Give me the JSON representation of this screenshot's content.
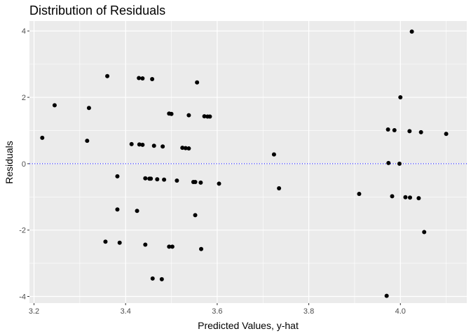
{
  "chart_data": {
    "type": "scatter",
    "title": "Distribution of Residuals",
    "xlabel": "Predicted Values, y-hat",
    "ylabel": "Residuals",
    "xlim": [
      3.19,
      4.145
    ],
    "ylim": [
      -4.2,
      4.3
    ],
    "xticks": [
      "3.2",
      "3.4",
      "3.6",
      "3.8",
      "4.0"
    ],
    "yticks": [
      "-4",
      "-2",
      "0",
      "2",
      "4"
    ],
    "grid": true,
    "reference_line": {
      "y": 0,
      "style": "dotted",
      "color": "#0000ff"
    },
    "colors": {
      "panel": "#ebebeb",
      "grid": "#ffffff",
      "point": "#000000"
    },
    "points": [
      {
        "x": 3.218,
        "y": 0.78
      },
      {
        "x": 3.245,
        "y": 1.76
      },
      {
        "x": 3.316,
        "y": 0.69
      },
      {
        "x": 3.32,
        "y": 1.68
      },
      {
        "x": 3.356,
        "y": -2.35
      },
      {
        "x": 3.36,
        "y": 2.64
      },
      {
        "x": 3.382,
        "y": -0.38
      },
      {
        "x": 3.382,
        "y": -1.38
      },
      {
        "x": 3.387,
        "y": -2.38
      },
      {
        "x": 3.413,
        "y": 0.59
      },
      {
        "x": 3.425,
        "y": -1.42
      },
      {
        "x": 3.429,
        "y": 2.58
      },
      {
        "x": 3.43,
        "y": 0.58
      },
      {
        "x": 3.437,
        "y": 2.57
      },
      {
        "x": 3.437,
        "y": 0.57
      },
      {
        "x": 3.443,
        "y": -0.44
      },
      {
        "x": 3.443,
        "y": -2.44
      },
      {
        "x": 3.452,
        "y": -0.45
      },
      {
        "x": 3.455,
        "y": -0.45
      },
      {
        "x": 3.458,
        "y": 2.55
      },
      {
        "x": 3.459,
        "y": -3.46
      },
      {
        "x": 3.462,
        "y": 0.54
      },
      {
        "x": 3.469,
        "y": -0.47
      },
      {
        "x": 3.479,
        "y": -3.48
      },
      {
        "x": 3.481,
        "y": 0.52
      },
      {
        "x": 3.484,
        "y": -0.48
      },
      {
        "x": 3.495,
        "y": 1.51
      },
      {
        "x": 3.495,
        "y": -2.5
      },
      {
        "x": 3.5,
        "y": 1.5
      },
      {
        "x": 3.502,
        "y": -2.5
      },
      {
        "x": 3.512,
        "y": -0.51
      },
      {
        "x": 3.524,
        "y": 0.48
      },
      {
        "x": 3.531,
        "y": 0.47
      },
      {
        "x": 3.538,
        "y": 0.46
      },
      {
        "x": 3.538,
        "y": 1.46
      },
      {
        "x": 3.548,
        "y": -0.55
      },
      {
        "x": 3.552,
        "y": -0.55
      },
      {
        "x": 3.552,
        "y": -1.55
      },
      {
        "x": 3.556,
        "y": 2.45
      },
      {
        "x": 3.564,
        "y": -0.57
      },
      {
        "x": 3.565,
        "y": -2.57
      },
      {
        "x": 3.572,
        "y": 1.43
      },
      {
        "x": 3.579,
        "y": 1.42
      },
      {
        "x": 3.584,
        "y": 1.42
      },
      {
        "x": 3.604,
        "y": -0.6
      },
      {
        "x": 3.724,
        "y": 0.28
      },
      {
        "x": 3.735,
        "y": -0.74
      },
      {
        "x": 3.91,
        "y": -0.91
      },
      {
        "x": 3.97,
        "y": -3.98
      },
      {
        "x": 3.973,
        "y": 1.03
      },
      {
        "x": 3.974,
        "y": 0.02
      },
      {
        "x": 3.982,
        "y": -0.98
      },
      {
        "x": 3.987,
        "y": 1.01
      },
      {
        "x": 3.998,
        "y": 0.0
      },
      {
        "x": 4.0,
        "y": 2.0
      },
      {
        "x": 4.011,
        "y": -1.01
      },
      {
        "x": 4.02,
        "y": 0.98
      },
      {
        "x": 4.021,
        "y": -1.02
      },
      {
        "x": 4.025,
        "y": 3.98
      },
      {
        "x": 4.04,
        "y": -1.04
      },
      {
        "x": 4.045,
        "y": 0.95
      },
      {
        "x": 4.052,
        "y": -2.06
      },
      {
        "x": 4.1,
        "y": 0.9
      }
    ]
  }
}
